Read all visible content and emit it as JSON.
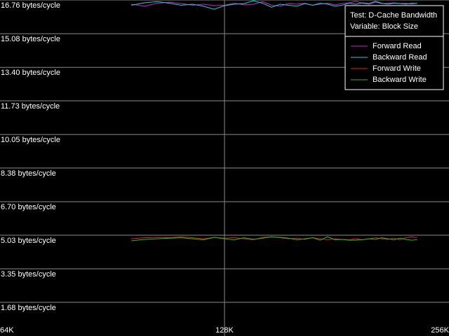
{
  "chart_data": {
    "type": "line",
    "annotations": [
      "Test: D-Cache Bandwidth",
      "Variable: Block Size"
    ],
    "x": [
      96,
      100,
      104,
      108,
      112,
      116,
      120,
      124,
      128,
      132,
      136,
      140,
      144,
      148,
      152,
      156,
      160,
      164,
      168,
      172,
      176,
      180,
      184,
      188,
      192,
      196,
      200,
      204,
      208,
      212,
      216,
      220,
      224,
      228,
      232
    ],
    "xlim": [
      64,
      256
    ],
    "xscale": "log",
    "xticks": [
      {
        "value": 64,
        "label": "64K"
      },
      {
        "value": 128,
        "label": "128K"
      },
      {
        "value": 256,
        "label": "256K"
      }
    ],
    "ylim": [
      0,
      16.76
    ],
    "yticks": [
      {
        "value": 1.68,
        "label": "1.68 bytes/cycle"
      },
      {
        "value": 3.35,
        "label": "3.35 bytes/cycle"
      },
      {
        "value": 5.03,
        "label": "5.03 bytes/cycle"
      },
      {
        "value": 6.7,
        "label": "6.70 bytes/cycle"
      },
      {
        "value": 8.38,
        "label": "8.38 bytes/cycle"
      },
      {
        "value": 10.05,
        "label": "10.05 bytes/cycle"
      },
      {
        "value": 11.73,
        "label": "11.73 bytes/cycle"
      },
      {
        "value": 13.4,
        "label": "13.40 bytes/cycle"
      },
      {
        "value": 15.08,
        "label": "15.08 bytes/cycle"
      },
      {
        "value": 16.76,
        "label": "16.76 bytes/cycle"
      }
    ],
    "grid": true,
    "legend": "top-right",
    "series": [
      {
        "name": "Forward Read",
        "color": "#d020d0",
        "values": [
          16.55,
          16.45,
          16.6,
          16.65,
          16.58,
          16.5,
          16.55,
          16.48,
          16.5,
          16.6,
          16.52,
          16.55,
          16.68,
          16.5,
          16.45,
          16.58,
          16.55,
          16.6,
          16.5,
          16.55,
          16.6,
          16.52,
          16.58,
          16.62,
          16.7,
          16.6,
          16.55,
          16.65,
          16.58,
          16.6,
          16.62,
          16.58,
          16.6,
          16.55,
          16.6
        ]
      },
      {
        "name": "Backward Read",
        "color": "#20d0d0",
        "values": [
          16.5,
          16.62,
          16.68,
          16.6,
          16.5,
          16.55,
          16.45,
          16.3,
          16.48,
          16.55,
          16.58,
          16.72,
          16.6,
          16.4,
          16.55,
          16.5,
          16.45,
          16.58,
          16.5,
          16.6,
          16.55,
          16.45,
          16.5,
          16.6,
          16.55,
          16.62,
          16.58,
          16.7,
          16.6,
          16.55,
          16.6,
          16.58,
          16.55,
          16.6,
          16.58
        ]
      },
      {
        "name": "Forward Write",
        "color": "#e02020",
        "values": [
          4.85,
          4.9,
          4.92,
          4.9,
          4.95,
          4.9,
          4.85,
          4.92,
          4.88,
          4.9,
          4.85,
          4.8,
          4.92,
          4.95,
          4.9,
          4.85,
          4.88,
          4.82,
          4.9,
          4.85,
          4.8,
          4.85,
          4.82,
          4.8,
          4.85,
          4.8,
          4.85,
          4.9,
          4.85,
          4.82,
          4.88,
          4.8,
          4.9,
          4.95,
          4.9
        ]
      },
      {
        "name": "Backward Write",
        "color": "#20c020",
        "values": [
          4.75,
          4.82,
          4.85,
          4.88,
          4.9,
          4.85,
          4.8,
          4.92,
          4.85,
          4.8,
          4.9,
          4.82,
          4.88,
          4.95,
          4.92,
          4.88,
          4.8,
          4.85,
          4.9,
          4.78,
          4.95,
          4.8,
          4.82,
          4.78,
          4.78,
          4.8,
          4.85,
          4.82,
          4.9,
          4.85,
          4.8,
          4.88,
          4.82,
          4.78,
          4.8
        ]
      }
    ]
  }
}
